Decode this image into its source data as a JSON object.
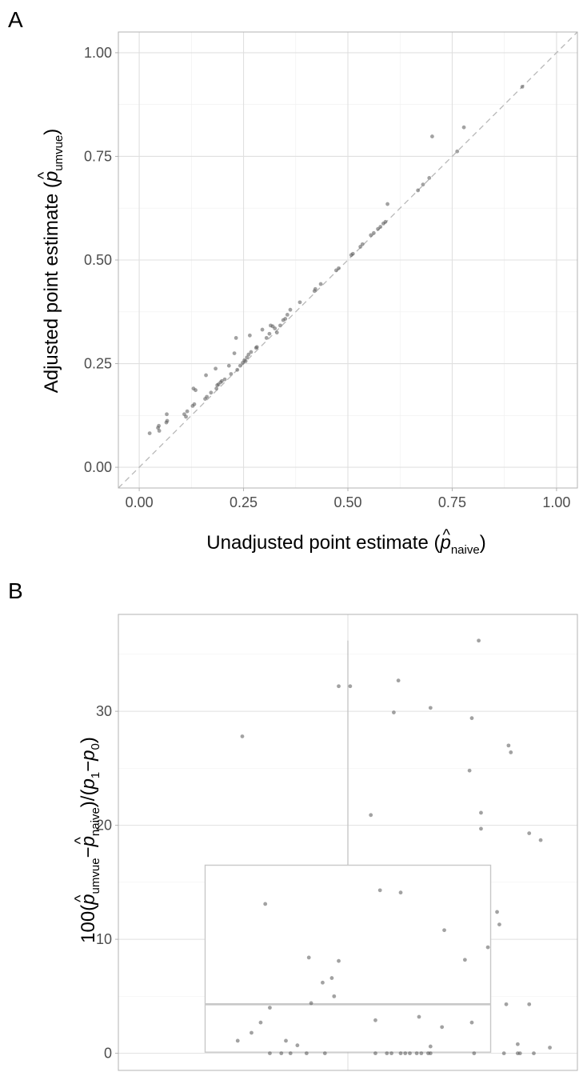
{
  "chart_data": [
    {
      "type": "scatter",
      "panel_label": "A",
      "xlabel": {
        "prefix": "Unadjusted point estimate (",
        "hat_symbol": "p",
        "subscript": "naive",
        "suffix": ")"
      },
      "ylabel": {
        "prefix": "Adjusted point estimate (",
        "hat_symbol": "p",
        "subscript": "umvue",
        "suffix": ")"
      },
      "xlim": [
        -0.05,
        1.05
      ],
      "ylim": [
        -0.05,
        1.05
      ],
      "x_ticks": [
        "0.00",
        "0.25",
        "0.50",
        "0.75",
        "1.00"
      ],
      "y_ticks": [
        "0.00",
        "0.25",
        "0.50",
        "0.75",
        "1.00"
      ],
      "x_tick_values": [
        0,
        0.25,
        0.5,
        0.75,
        1.0
      ],
      "y_tick_values": [
        0,
        0.25,
        0.5,
        0.75,
        1.0
      ],
      "grid": true,
      "reference_line": {
        "type": "identity",
        "style": "dashed",
        "color": "#b3b3b3"
      },
      "point_color": "#555555",
      "points": [
        [
          0.025,
          0.082
        ],
        [
          0.045,
          0.095
        ],
        [
          0.048,
          0.088
        ],
        [
          0.047,
          0.1
        ],
        [
          0.065,
          0.108
        ],
        [
          0.067,
          0.112
        ],
        [
          0.066,
          0.128
        ],
        [
          0.108,
          0.128
        ],
        [
          0.112,
          0.122
        ],
        [
          0.115,
          0.135
        ],
        [
          0.128,
          0.148
        ],
        [
          0.132,
          0.152
        ],
        [
          0.13,
          0.19
        ],
        [
          0.135,
          0.186
        ],
        [
          0.158,
          0.165
        ],
        [
          0.162,
          0.17
        ],
        [
          0.16,
          0.222
        ],
        [
          0.172,
          0.18
        ],
        [
          0.185,
          0.19
        ],
        [
          0.187,
          0.198
        ],
        [
          0.19,
          0.2
        ],
        [
          0.183,
          0.238
        ],
        [
          0.195,
          0.205
        ],
        [
          0.198,
          0.208
        ],
        [
          0.205,
          0.212
        ],
        [
          0.215,
          0.245
        ],
        [
          0.22,
          0.225
        ],
        [
          0.228,
          0.275
        ],
        [
          0.232,
          0.312
        ],
        [
          0.235,
          0.235
        ],
        [
          0.242,
          0.245
        ],
        [
          0.248,
          0.252
        ],
        [
          0.252,
          0.258
        ],
        [
          0.255,
          0.256
        ],
        [
          0.258,
          0.265
        ],
        [
          0.262,
          0.272
        ],
        [
          0.268,
          0.278
        ],
        [
          0.265,
          0.318
        ],
        [
          0.28,
          0.288
        ],
        [
          0.282,
          0.29
        ],
        [
          0.295,
          0.332
        ],
        [
          0.305,
          0.312
        ],
        [
          0.312,
          0.322
        ],
        [
          0.315,
          0.342
        ],
        [
          0.32,
          0.34
        ],
        [
          0.325,
          0.335
        ],
        [
          0.33,
          0.325
        ],
        [
          0.338,
          0.342
        ],
        [
          0.345,
          0.355
        ],
        [
          0.35,
          0.358
        ],
        [
          0.355,
          0.368
        ],
        [
          0.362,
          0.38
        ],
        [
          0.385,
          0.398
        ],
        [
          0.42,
          0.425
        ],
        [
          0.422,
          0.43
        ],
        [
          0.435,
          0.442
        ],
        [
          0.472,
          0.475
        ],
        [
          0.478,
          0.48
        ],
        [
          0.508,
          0.512
        ],
        [
          0.512,
          0.515
        ],
        [
          0.53,
          0.532
        ],
        [
          0.535,
          0.538
        ],
        [
          0.555,
          0.56
        ],
        [
          0.562,
          0.565
        ],
        [
          0.572,
          0.575
        ],
        [
          0.578,
          0.58
        ],
        [
          0.585,
          0.588
        ],
        [
          0.59,
          0.592
        ],
        [
          0.595,
          0.635
        ],
        [
          0.668,
          0.668
        ],
        [
          0.68,
          0.682
        ],
        [
          0.695,
          0.698
        ],
        [
          0.702,
          0.798
        ],
        [
          0.762,
          0.762
        ],
        [
          0.778,
          0.82
        ],
        [
          0.918,
          0.918
        ]
      ]
    },
    {
      "type": "box",
      "panel_label": "B",
      "ylabel": {
        "lead": "100(",
        "hat1": "p",
        "sub1": "umvue",
        "minus1": "−",
        "hat2": "p",
        "sub2": "naive",
        "mid": ")/(",
        "p1": "p",
        "sub3": "1",
        "minus2": "−",
        "p2": "p",
        "sub4": "0",
        "end": ")"
      },
      "ylim": [
        -1.5,
        38.5
      ],
      "y_ticks": [
        "0",
        "10",
        "20",
        "30"
      ],
      "y_tick_values": [
        0,
        10,
        20,
        30
      ],
      "grid": true,
      "box": {
        "q1": 0.1,
        "median": 4.3,
        "q3": 16.5,
        "whisker_low": 0,
        "whisker_high": 36.2
      },
      "box_color": "#c8c8c8",
      "point_color": "#555555",
      "jitter_points": [
        [
          -0.23,
          27.8
        ],
        [
          -0.02,
          32.2
        ],
        [
          0.005,
          32.2
        ],
        [
          0.11,
          32.7
        ],
        [
          0.18,
          30.3
        ],
        [
          0.1,
          29.9
        ],
        [
          0.285,
          36.2
        ],
        [
          0.27,
          29.4
        ],
        [
          0.265,
          24.8
        ],
        [
          0.35,
          27.0
        ],
        [
          0.355,
          26.4
        ],
        [
          0.05,
          20.9
        ],
        [
          0.29,
          21.1
        ],
        [
          0.29,
          19.7
        ],
        [
          0.395,
          19.3
        ],
        [
          0.42,
          18.7
        ],
        [
          -0.18,
          13.1
        ],
        [
          0.07,
          14.3
        ],
        [
          0.115,
          14.1
        ],
        [
          0.21,
          10.8
        ],
        [
          0.255,
          8.2
        ],
        [
          0.325,
          12.4
        ],
        [
          0.33,
          11.3
        ],
        [
          0.305,
          9.3
        ],
        [
          -0.085,
          8.4
        ],
        [
          -0.055,
          6.2
        ],
        [
          -0.035,
          6.6
        ],
        [
          -0.02,
          8.1
        ],
        [
          -0.03,
          5.0
        ],
        [
          -0.08,
          4.4
        ],
        [
          -0.17,
          4.0
        ],
        [
          -0.19,
          2.7
        ],
        [
          -0.21,
          1.8
        ],
        [
          -0.24,
          1.1
        ],
        [
          -0.135,
          1.1
        ],
        [
          -0.11,
          0.7
        ],
        [
          0.06,
          2.9
        ],
        [
          0.155,
          3.2
        ],
        [
          0.205,
          2.3
        ],
        [
          0.27,
          2.7
        ],
        [
          0.345,
          4.3
        ],
        [
          0.395,
          4.3
        ],
        [
          0.37,
          0.8
        ],
        [
          0.44,
          0.5
        ],
        [
          -0.17,
          0.0
        ],
        [
          -0.145,
          0.0
        ],
        [
          -0.125,
          0.0
        ],
        [
          -0.09,
          0.0
        ],
        [
          -0.05,
          0.0
        ],
        [
          0.06,
          0.0
        ],
        [
          0.085,
          0.0
        ],
        [
          0.095,
          0.0
        ],
        [
          0.115,
          0.0
        ],
        [
          0.125,
          0.0
        ],
        [
          0.135,
          0.0
        ],
        [
          0.15,
          0.0
        ],
        [
          0.16,
          0.0
        ],
        [
          0.175,
          0.0
        ],
        [
          0.18,
          0.6
        ],
        [
          0.18,
          0.0
        ],
        [
          0.275,
          0.0
        ],
        [
          0.34,
          0.0
        ],
        [
          0.37,
          0.0
        ],
        [
          0.375,
          0.0
        ],
        [
          0.405,
          0.0
        ]
      ]
    }
  ]
}
